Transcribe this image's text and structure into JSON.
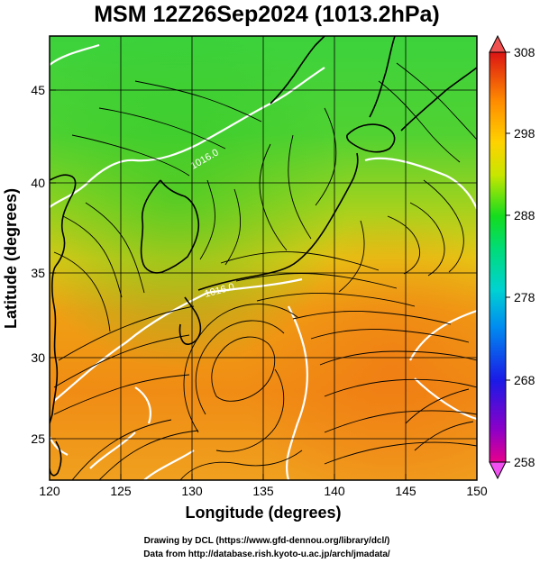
{
  "title": "MSM 12Z26Sep2024 (1013.2hPa)",
  "xlabel": "Longitude (degrees)",
  "ylabel": "Latitude  (degrees)",
  "credit_line1": "Drawing by DCL (https://www.gfd-dennou.org/library/dcl/)",
  "credit_line2": "Data from http://database.rish.kyoto-u.ac.jp/arch/jmadata/",
  "contour_labels": [
    "1016.0",
    "1016.0"
  ],
  "map": {
    "lon_range": [
      120,
      150
    ],
    "lat_range": [
      22.4,
      47.6
    ],
    "lon_ticks": [
      "120",
      "125",
      "130",
      "135",
      "140",
      "145",
      "150"
    ],
    "lat_ticks": [
      "25",
      "30",
      "35",
      "40",
      "45"
    ],
    "field": "temperature (K)",
    "streamlines": "surface wind"
  },
  "colorbar": {
    "min": 258,
    "max": 308,
    "ticks": [
      "308",
      "298",
      "288",
      "278",
      "268",
      "258"
    ],
    "colors": [
      "#e8008c",
      "#1a1ae6",
      "#00aaf0",
      "#00d2b4",
      "#14dc1e",
      "#ffee00",
      "#ff8c00",
      "#dc1414"
    ]
  }
}
